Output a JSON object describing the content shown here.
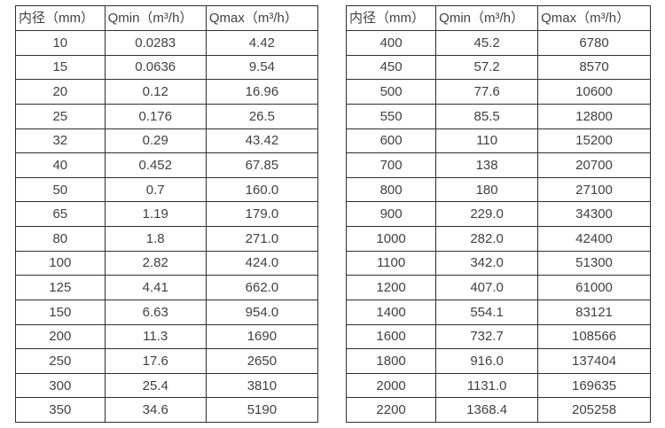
{
  "page": {
    "background": "#ffffff",
    "border_color": "#2f2f2f",
    "text_color": "#414141"
  },
  "chart_data": [
    {
      "type": "table",
      "title": "",
      "columns": [
        "内径（mm）",
        "Qmin（m³/h）",
        "Qmax（m³/h）"
      ],
      "rows": [
        [
          "10",
          "0.0283",
          "4.42"
        ],
        [
          "15",
          "0.0636",
          "9.54"
        ],
        [
          "20",
          "0.12",
          "16.96"
        ],
        [
          "25",
          "0.176",
          "26.5"
        ],
        [
          "32",
          "0.29",
          "43.42"
        ],
        [
          "40",
          "0.452",
          "67.85"
        ],
        [
          "50",
          "0.7",
          "160.0"
        ],
        [
          "65",
          "1.19",
          "179.0"
        ],
        [
          "80",
          "1.8",
          "271.0"
        ],
        [
          "100",
          "2.82",
          "424.0"
        ],
        [
          "125",
          "4.41",
          "662.0"
        ],
        [
          "150",
          "6.63",
          "954.0"
        ],
        [
          "200",
          "11.3",
          "1690"
        ],
        [
          "250",
          "17.6",
          "2650"
        ],
        [
          "300",
          "25.4",
          "3810"
        ],
        [
          "350",
          "34.6",
          "5190"
        ]
      ]
    },
    {
      "type": "table",
      "title": "",
      "columns": [
        "内径（mm）",
        "Qmin（m³/h）",
        "Qmax（m³/h）"
      ],
      "rows": [
        [
          "400",
          "45.2",
          "6780"
        ],
        [
          "450",
          "57.2",
          "8570"
        ],
        [
          "500",
          "77.6",
          "10600"
        ],
        [
          "550",
          "85.5",
          "12800"
        ],
        [
          "600",
          "110",
          "15200"
        ],
        [
          "700",
          "138",
          "20700"
        ],
        [
          "800",
          "180",
          "27100"
        ],
        [
          "900",
          "229.0",
          "34300"
        ],
        [
          "1000",
          "282.0",
          "42400"
        ],
        [
          "1100",
          "342.0",
          "51300"
        ],
        [
          "1200",
          "407.0",
          "61000"
        ],
        [
          "1400",
          "554.1",
          "83121"
        ],
        [
          "1600",
          "732.7",
          "108566"
        ],
        [
          "1800",
          "916.0",
          "137404"
        ],
        [
          "2000",
          "1131.0",
          "169635"
        ],
        [
          "2200",
          "1368.4",
          "205258"
        ]
      ]
    }
  ]
}
